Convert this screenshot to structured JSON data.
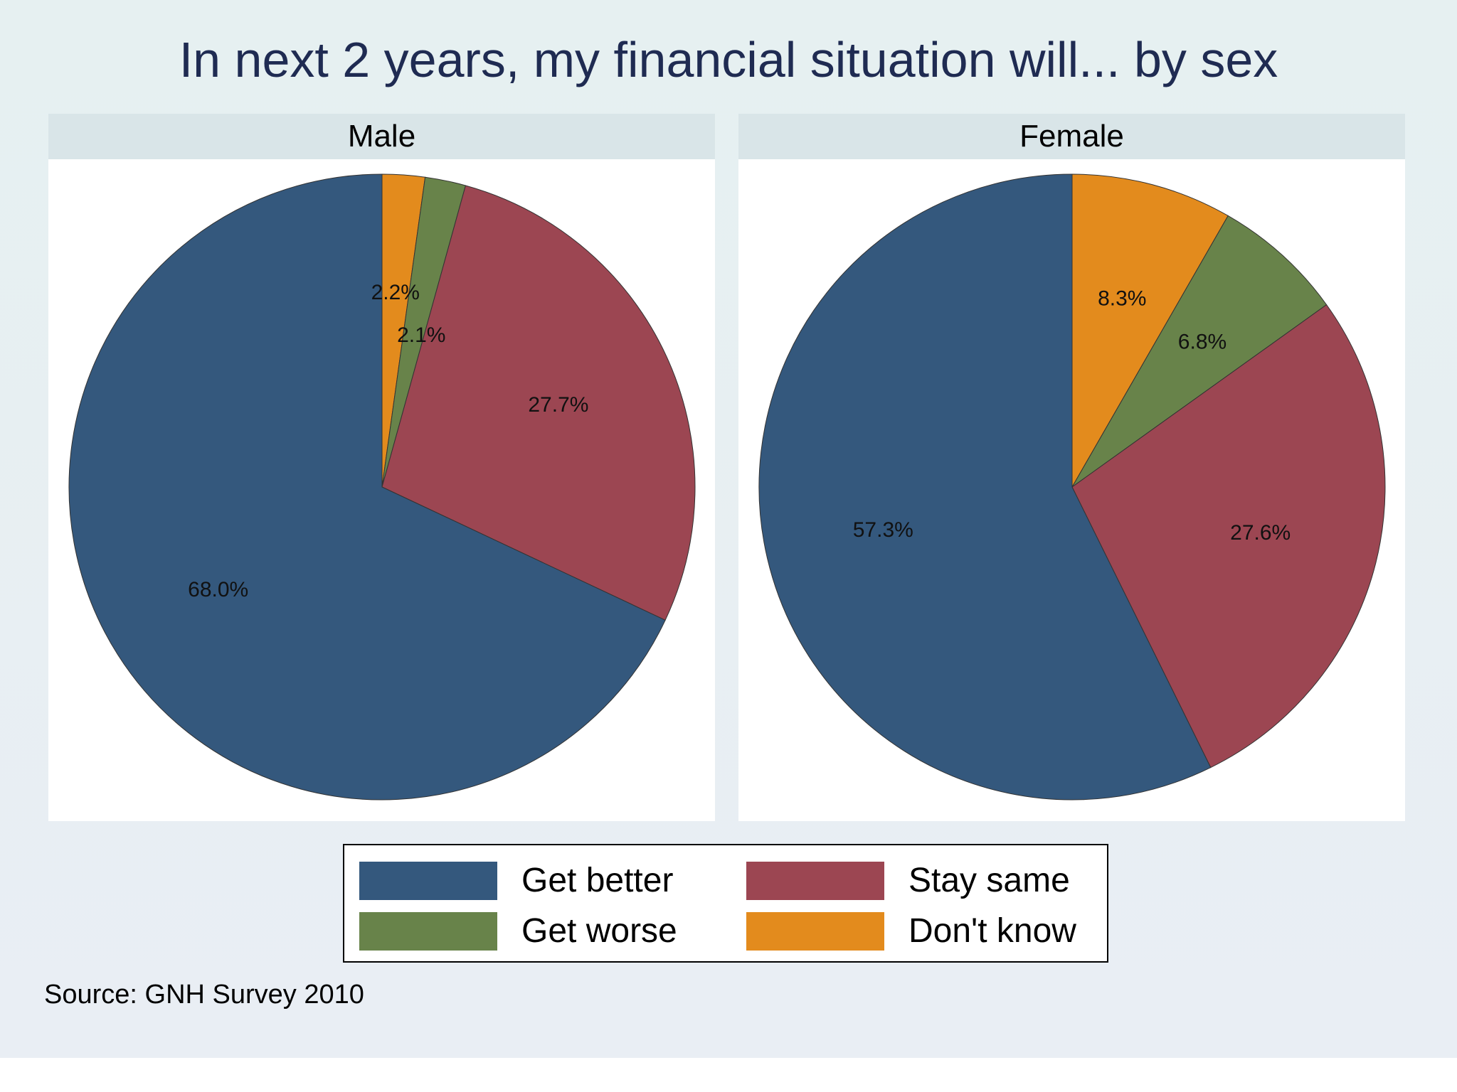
{
  "chart_data": {
    "type": "pie",
    "title": "In next 2 years, my financial situation will... by sex",
    "categories": [
      "Get better",
      "Stay same",
      "Get worse",
      "Don't know"
    ],
    "colors": [
      "#34587d",
      "#9c4652",
      "#68834a",
      "#e38b1d"
    ],
    "series": [
      {
        "name": "Male",
        "values": [
          68.0,
          27.7,
          2.1,
          2.2
        ],
        "labels": [
          "68.0%",
          "27.7%",
          "2.1%",
          "2.2%"
        ]
      },
      {
        "name": "Female",
        "values": [
          57.3,
          27.6,
          6.8,
          8.3
        ],
        "labels": [
          "57.3%",
          "27.6%",
          "6.8%",
          "8.3%"
        ]
      }
    ],
    "legend": {
      "placement": "bottom",
      "entries": [
        "Get better",
        "Stay same",
        "Get worse",
        "Don't know"
      ]
    },
    "note": "Source: GNH Survey 2010"
  }
}
